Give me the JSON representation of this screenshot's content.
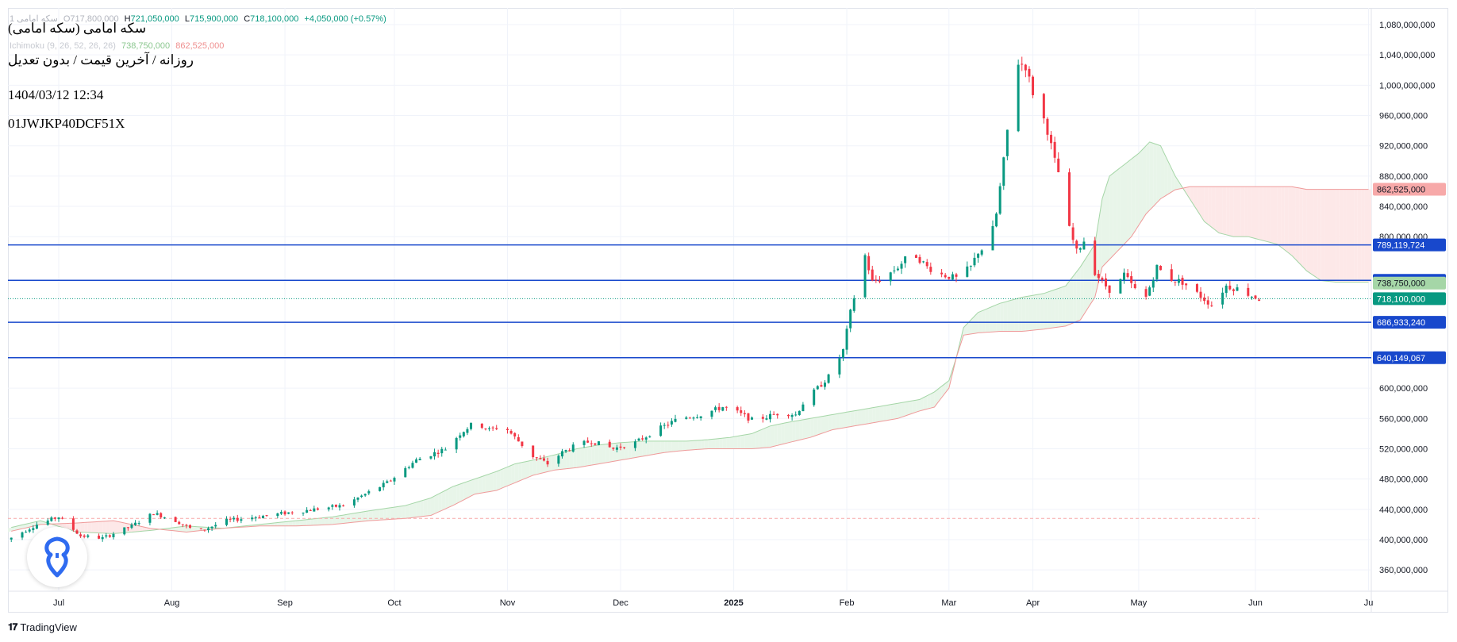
{
  "legend": {
    "symbol": "سکه امامی 1",
    "open_label": "O",
    "open": "717,800,000",
    "high_label": "H",
    "high": "721,050,000",
    "low_label": "L",
    "low": "715,900,000",
    "close_label": "C",
    "close": "718,100,000",
    "change": "+4,050,000 (+0.57%)",
    "indicator_name": "Ichimoku (9, 26, 52, 26, 26)",
    "indicator_val1": "738,750,000",
    "indicator_val2": "862,525,000"
  },
  "overlay": {
    "title": "سکه امامی (سکه امامی)",
    "subtitle": "روزانه / آخرین قیمت / بدون تعدیل",
    "datetime": "1404/03/12 12:34",
    "code": "01JWJKP40DCF51X"
  },
  "branding": {
    "name": "TradingView"
  },
  "colors": {
    "up": "#089981",
    "down": "#f23645",
    "hline": "#1848cc",
    "kumo_up": "#e8f5e9",
    "kumo_down": "#fde8e8",
    "span_a": "#a5d6a7",
    "span_b": "#ef9a9a",
    "close_label_bg": "#089981",
    "span_a_label_bg": "#a5d6a7",
    "span_b_label_bg": "#f7a9a9"
  },
  "chart_data": {
    "type": "candlestick",
    "y_range": [
      330000000,
      1100000000
    ],
    "y_ticks": [
      {
        "value": 1080000000,
        "label": "1,080,000,000"
      },
      {
        "value": 1040000000,
        "label": "1,040,000,000"
      },
      {
        "value": 1000000000,
        "label": "1,000,000,000"
      },
      {
        "value": 960000000,
        "label": "960,000,000"
      },
      {
        "value": 920000000,
        "label": "920,000,000"
      },
      {
        "value": 880000000,
        "label": "880,000,000"
      },
      {
        "value": 840000000,
        "label": "840,000,000"
      },
      {
        "value": 800000000,
        "label": "800,000,000"
      },
      {
        "value": 600000000,
        "label": "600,000,000"
      },
      {
        "value": 560000000,
        "label": "560,000,000"
      },
      {
        "value": 520000000,
        "label": "520,000,000"
      },
      {
        "value": 480000000,
        "label": "480,000,000"
      },
      {
        "value": 440000000,
        "label": "440,000,000"
      },
      {
        "value": 400000000,
        "label": "400,000,000"
      },
      {
        "value": 360000000,
        "label": "360,000,000"
      }
    ],
    "x_ticks": [
      {
        "day": 10,
        "label": "Jul",
        "bold": false
      },
      {
        "day": 41,
        "label": "Aug",
        "bold": false
      },
      {
        "day": 72,
        "label": "Sep",
        "bold": false
      },
      {
        "day": 102,
        "label": "Oct",
        "bold": false
      },
      {
        "day": 133,
        "label": "Nov",
        "bold": false
      },
      {
        "day": 164,
        "label": "Dec",
        "bold": false
      },
      {
        "day": 195,
        "label": "2025",
        "bold": true
      },
      {
        "day": 226,
        "label": "Feb",
        "bold": false
      },
      {
        "day": 254,
        "label": "Mar",
        "bold": false
      },
      {
        "day": 277,
        "label": "Apr",
        "bold": false
      },
      {
        "day": 306,
        "label": "May",
        "bold": false
      },
      {
        "day": 338,
        "label": "Jun",
        "bold": false
      },
      {
        "day": 369,
        "label": "Ju",
        "bold": false
      }
    ],
    "horizontal_lines": [
      {
        "value": 789119724,
        "label": "789,119,724"
      },
      {
        "value": 742335551,
        "label": "742,335,551"
      },
      {
        "value": 686933240,
        "label": "686,933,240"
      },
      {
        "value": 640149067,
        "label": "640,149,067"
      }
    ],
    "last_price": {
      "value": 718100000,
      "label": "718,100,000"
    },
    "span_a_last": {
      "value": 738750000,
      "label": "738,750,000"
    },
    "span_b_last": {
      "value": 862525000,
      "label": "862,525,000"
    },
    "dashed_level": 428000000,
    "price_path": [
      [
        -4,
        400000000
      ],
      [
        4,
        420000000
      ],
      [
        10,
        430000000
      ],
      [
        16,
        405000000
      ],
      [
        22,
        402000000
      ],
      [
        30,
        418000000
      ],
      [
        36,
        435000000
      ],
      [
        42,
        425000000
      ],
      [
        48,
        410000000
      ],
      [
        56,
        425000000
      ],
      [
        64,
        430000000
      ],
      [
        72,
        435000000
      ],
      [
        80,
        440000000
      ],
      [
        88,
        445000000
      ],
      [
        94,
        460000000
      ],
      [
        100,
        475000000
      ],
      [
        108,
        505000000
      ],
      [
        116,
        520000000
      ],
      [
        120,
        540000000
      ],
      [
        124,
        555000000
      ],
      [
        128,
        545000000
      ],
      [
        132,
        550000000
      ],
      [
        136,
        530000000
      ],
      [
        140,
        510000000
      ],
      [
        144,
        500000000
      ],
      [
        148,
        515000000
      ],
      [
        152,
        525000000
      ],
      [
        156,
        530000000
      ],
      [
        162,
        520000000
      ],
      [
        168,
        528000000
      ],
      [
        174,
        545000000
      ],
      [
        180,
        560000000
      ],
      [
        186,
        565000000
      ],
      [
        192,
        575000000
      ],
      [
        196,
        568000000
      ],
      [
        200,
        558000000
      ],
      [
        204,
        562000000
      ],
      [
        208,
        568000000
      ],
      [
        212,
        565000000
      ],
      [
        214,
        580000000
      ],
      [
        218,
        600000000
      ],
      [
        222,
        620000000
      ],
      [
        225,
        650000000
      ],
      [
        227,
        700000000
      ],
      [
        229,
        740000000
      ],
      [
        231,
        775000000
      ],
      [
        233,
        740000000
      ],
      [
        236,
        745000000
      ],
      [
        240,
        760000000
      ],
      [
        244,
        780000000
      ],
      [
        248,
        760000000
      ],
      [
        252,
        750000000
      ],
      [
        256,
        745000000
      ],
      [
        260,
        760000000
      ],
      [
        262,
        780000000
      ],
      [
        265,
        790000000
      ],
      [
        267,
        830000000
      ],
      [
        269,
        900000000
      ],
      [
        271,
        980000000
      ],
      [
        273,
        1030000000
      ],
      [
        275,
        1025000000
      ],
      [
        277,
        990000000
      ],
      [
        279,
        970000000
      ],
      [
        281,
        940000000
      ],
      [
        283,
        900000000
      ],
      [
        285,
        870000000
      ],
      [
        287,
        810000000
      ],
      [
        289,
        780000000
      ],
      [
        291,
        795000000
      ],
      [
        293,
        760000000
      ],
      [
        296,
        740000000
      ],
      [
        299,
        725000000
      ],
      [
        302,
        750000000
      ],
      [
        305,
        730000000
      ],
      [
        308,
        720000000
      ],
      [
        311,
        760000000
      ],
      [
        314,
        745000000
      ],
      [
        318,
        740000000
      ],
      [
        322,
        725000000
      ],
      [
        326,
        710000000
      ],
      [
        330,
        735000000
      ],
      [
        334,
        730000000
      ],
      [
        337,
        722000000
      ],
      [
        339,
        718100000
      ]
    ],
    "span_a": [
      [
        -4,
        415000000
      ],
      [
        5,
        425000000
      ],
      [
        15,
        410000000
      ],
      [
        25,
        408000000
      ],
      [
        35,
        412000000
      ],
      [
        45,
        418000000
      ],
      [
        55,
        415000000
      ],
      [
        65,
        420000000
      ],
      [
        75,
        425000000
      ],
      [
        85,
        430000000
      ],
      [
        95,
        438000000
      ],
      [
        105,
        445000000
      ],
      [
        112,
        455000000
      ],
      [
        118,
        470000000
      ],
      [
        124,
        480000000
      ],
      [
        130,
        490000000
      ],
      [
        135,
        500000000
      ],
      [
        140,
        505000000
      ],
      [
        146,
        512000000
      ],
      [
        152,
        520000000
      ],
      [
        158,
        525000000
      ],
      [
        164,
        528000000
      ],
      [
        170,
        530000000
      ],
      [
        176,
        530000000
      ],
      [
        182,
        530000000
      ],
      [
        188,
        532000000
      ],
      [
        194,
        535000000
      ],
      [
        200,
        540000000
      ],
      [
        205,
        550000000
      ],
      [
        210,
        555000000
      ],
      [
        216,
        560000000
      ],
      [
        222,
        565000000
      ],
      [
        228,
        570000000
      ],
      [
        234,
        575000000
      ],
      [
        240,
        580000000
      ],
      [
        246,
        585000000
      ],
      [
        250,
        595000000
      ],
      [
        254,
        610000000
      ],
      [
        256,
        640000000
      ],
      [
        258,
        680000000
      ],
      [
        262,
        700000000
      ],
      [
        268,
        712000000
      ],
      [
        274,
        720000000
      ],
      [
        280,
        725000000
      ],
      [
        286,
        735000000
      ],
      [
        290,
        760000000
      ],
      [
        294,
        790000000
      ],
      [
        296,
        850000000
      ],
      [
        298,
        880000000
      ],
      [
        302,
        895000000
      ],
      [
        306,
        910000000
      ],
      [
        309,
        925000000
      ],
      [
        312,
        920000000
      ],
      [
        316,
        880000000
      ],
      [
        320,
        850000000
      ],
      [
        324,
        820000000
      ],
      [
        328,
        805000000
      ],
      [
        332,
        800000000
      ],
      [
        336,
        800000000
      ],
      [
        340,
        795000000
      ],
      [
        344,
        790000000
      ],
      [
        348,
        775000000
      ],
      [
        352,
        755000000
      ],
      [
        356,
        742000000
      ],
      [
        360,
        740000000
      ],
      [
        366,
        740000000
      ],
      [
        370,
        740000000
      ]
    ],
    "span_b": [
      [
        -4,
        410000000
      ],
      [
        5,
        420000000
      ],
      [
        15,
        422000000
      ],
      [
        25,
        425000000
      ],
      [
        35,
        415000000
      ],
      [
        45,
        410000000
      ],
      [
        55,
        415000000
      ],
      [
        65,
        418000000
      ],
      [
        75,
        418000000
      ],
      [
        85,
        420000000
      ],
      [
        95,
        425000000
      ],
      [
        105,
        428000000
      ],
      [
        112,
        432000000
      ],
      [
        118,
        445000000
      ],
      [
        124,
        460000000
      ],
      [
        130,
        465000000
      ],
      [
        135,
        475000000
      ],
      [
        140,
        485000000
      ],
      [
        146,
        492000000
      ],
      [
        152,
        495000000
      ],
      [
        158,
        500000000
      ],
      [
        164,
        505000000
      ],
      [
        170,
        510000000
      ],
      [
        176,
        515000000
      ],
      [
        182,
        518000000
      ],
      [
        188,
        520000000
      ],
      [
        194,
        520000000
      ],
      [
        200,
        520000000
      ],
      [
        205,
        522000000
      ],
      [
        210,
        528000000
      ],
      [
        216,
        535000000
      ],
      [
        222,
        545000000
      ],
      [
        228,
        550000000
      ],
      [
        234,
        555000000
      ],
      [
        240,
        560000000
      ],
      [
        246,
        570000000
      ],
      [
        250,
        575000000
      ],
      [
        254,
        600000000
      ],
      [
        256,
        640000000
      ],
      [
        258,
        670000000
      ],
      [
        262,
        673000000
      ],
      [
        268,
        675000000
      ],
      [
        274,
        675000000
      ],
      [
        280,
        678000000
      ],
      [
        286,
        682000000
      ],
      [
        290,
        690000000
      ],
      [
        294,
        720000000
      ],
      [
        296,
        760000000
      ],
      [
        300,
        780000000
      ],
      [
        304,
        800000000
      ],
      [
        308,
        830000000
      ],
      [
        312,
        850000000
      ],
      [
        316,
        862000000
      ],
      [
        320,
        866000000
      ],
      [
        326,
        866000000
      ],
      [
        332,
        866000000
      ],
      [
        338,
        866000000
      ],
      [
        344,
        866000000
      ],
      [
        348,
        866000000
      ],
      [
        352,
        862525000
      ],
      [
        360,
        862525000
      ],
      [
        370,
        862525000
      ]
    ]
  }
}
